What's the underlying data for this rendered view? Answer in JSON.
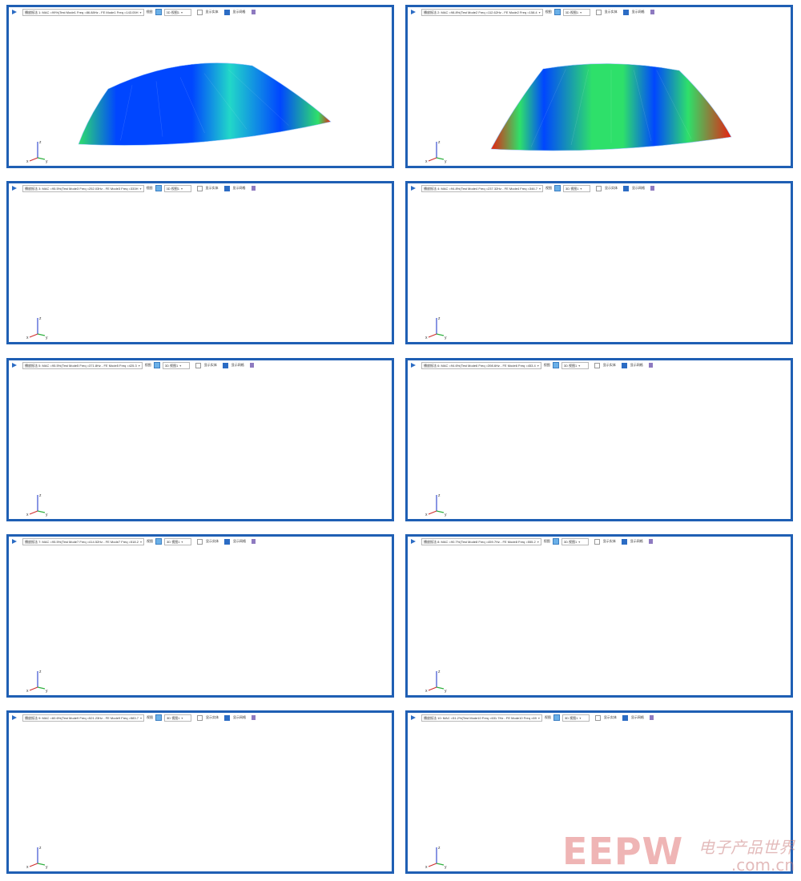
{
  "panels": [
    {
      "mode_label": "播放振法 1: MAC =99%(Test Mode1 Freq =86.88Hz - FE Mode1 Freq =143.05H",
      "view_label": "3D 视图1"
    },
    {
      "mode_label": "播放振法 2: MAC =98.8%(Test Mode2 Freq =112.62Hz - FE Mode2 Freq =158.4",
      "view_label": "3D 视图1"
    },
    {
      "mode_label": "播放振法 3: MAC =95.5%(Test Mode3 Freq =252.03Hz - FE Mode3 Freq =333H",
      "view_label": "3D 视图1"
    },
    {
      "mode_label": "播放振法 4: MAC =94.8%(Test Mode4 Freq =237.32Hz - FE Mode4 Freq =346.7",
      "view_label": "3D 视图1"
    },
    {
      "mode_label": "播放振法 5: MAC =95.5%(Test Mode5 Freq =371.8Hz - FE Mode5 Freq =425.3",
      "view_label": "3D 视图1"
    },
    {
      "mode_label": "播放振法 6: MAC =94.6%(Test Mode6 Freq =398.6Hz - FE Mode6 Freq =453.4",
      "view_label": "3D 视图1"
    },
    {
      "mode_label": "播放振法 7: MAC =95.5%(Test Mode7 Freq =414.52Hz - FE Mode7 Freq =518.2",
      "view_label": "3D 视图1"
    },
    {
      "mode_label": "播放振法 8: MAC =90.7%(Test Mode8 Freq =459.7Hz - FE Mode8 Freq =555.2",
      "view_label": "3D 视图1"
    },
    {
      "mode_label": "播放振法 9: MAC =60.6%(Test Mode9 Freq =521.23Hz - FE Mode9 Freq =583.7",
      "view_label": "3D 视图1"
    },
    {
      "mode_label": "播放振法 10: MAC =51.2%(Test Mode10 Freq =631.7Hz - FE Mode10 Freq =69",
      "view_label": "3D 视图1"
    }
  ],
  "toolbar": {
    "view_prefix": "视图",
    "show_solid": "显示实体",
    "show_mesh": "显示网格"
  },
  "axis_labels": {
    "x": "x",
    "y": "y",
    "z": "z"
  },
  "watermark": {
    "main": "EEPW",
    "cn": "电子产品世界",
    "url": ".com.cn"
  },
  "colors": {
    "frame": "#1f5fb4",
    "low": "#0046ff",
    "mid": "#2ee06a",
    "high": "#e82010"
  }
}
